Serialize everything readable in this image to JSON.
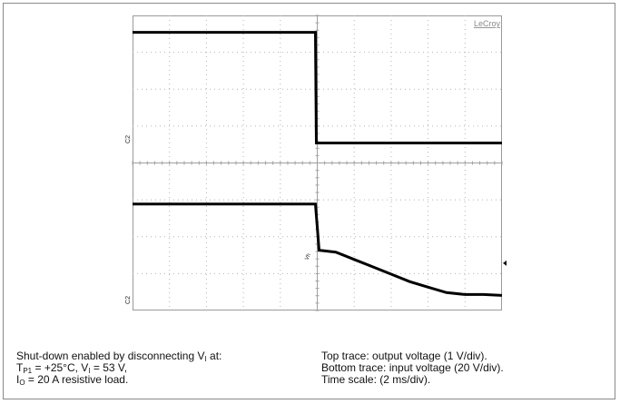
{
  "chart_data": {
    "type": "line",
    "brand_label": "LeCroy",
    "x_unit": "ms",
    "x_per_div": 2,
    "x_range": [
      0,
      20
    ],
    "grid": true,
    "divisions": {
      "x": 10,
      "y": 8
    },
    "series": [
      {
        "name": "Top trace: output voltage",
        "channel": "C2",
        "unit": "V",
        "per_div": 1,
        "points": [
          [
            0,
            3.0
          ],
          [
            9.9,
            3.0
          ],
          [
            9.95,
            0.0
          ],
          [
            20,
            0.0
          ]
        ]
      },
      {
        "name": "Bottom trace: input voltage",
        "channel": "C2",
        "unit": "V",
        "per_div": 20,
        "points": [
          [
            0,
            53
          ],
          [
            9.9,
            53
          ],
          [
            10.1,
            28
          ],
          [
            11,
            27
          ],
          [
            12,
            23
          ],
          [
            13,
            19
          ],
          [
            14,
            15
          ],
          [
            15,
            11
          ],
          [
            16,
            8
          ],
          [
            17,
            5
          ],
          [
            18,
            4
          ],
          [
            19,
            4
          ],
          [
            20,
            3.5
          ]
        ]
      }
    ],
    "markers": {
      "trigger_level_label": "Vh"
    },
    "colors": {
      "trace": "#000000",
      "grid": "#b4b4b4",
      "brand": "#8a8a8a"
    }
  },
  "captions": {
    "left": {
      "line1_a": "Shut-down enabled by disconnecting V",
      "line1_sub": "I",
      "line1_b": " at:",
      "line2_a": "T",
      "line2_sub1": "P1",
      "line2_b": " = +25°C, V",
      "line2_sub2": "I",
      "line2_c": " = 53 V,",
      "line3_a": "I",
      "line3_sub": "O",
      "line3_b": " = 20 A resistive load."
    },
    "right": {
      "line1": "Top trace: output voltage (1 V/div).",
      "line2": "Bottom trace: input voltage (20 V/div).",
      "line3": "Time scale: (2 ms/div)."
    }
  }
}
